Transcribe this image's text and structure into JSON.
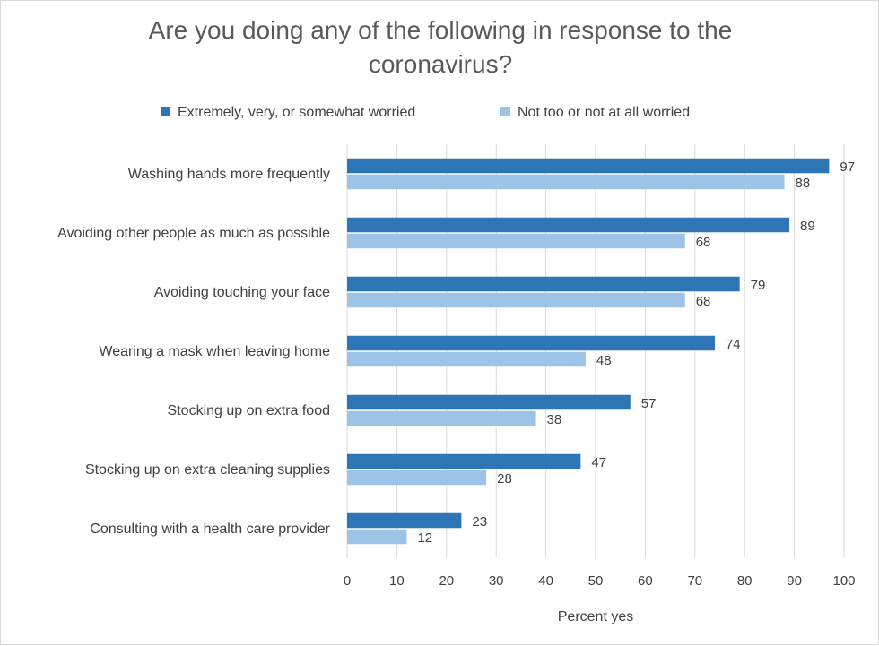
{
  "chart_data": {
    "type": "bar",
    "orientation": "horizontal",
    "title": "Are you doing any of the following in response to the coronavirus?",
    "xlabel": "Percent yes",
    "ylabel": "",
    "xlim": [
      0,
      100
    ],
    "x_ticks": [
      0,
      10,
      20,
      30,
      40,
      50,
      60,
      70,
      80,
      90,
      100
    ],
    "grid": true,
    "legend_position": "top",
    "categories": [
      "Washing hands more frequently",
      "Avoiding other people as much as possible",
      "Avoiding touching your face",
      "Wearing a mask when leaving home",
      "Stocking up on extra food",
      "Stocking up on extra cleaning supplies",
      "Consulting with a health care provider"
    ],
    "series": [
      {
        "name": "Extremely, very, or somewhat worried",
        "color": "#2e75b6",
        "values": [
          97,
          89,
          79,
          74,
          57,
          47,
          23
        ]
      },
      {
        "name": "Not too or not at all worried",
        "color": "#9dc3e6",
        "values": [
          88,
          68,
          68,
          48,
          38,
          28,
          12
        ]
      }
    ]
  }
}
